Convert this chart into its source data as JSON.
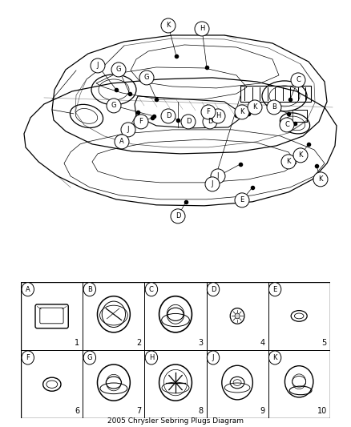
{
  "title": "2005 Chrysler Sebring Plugs Diagram",
  "bg_color": "#ffffff",
  "fig_width": 4.38,
  "fig_height": 5.33,
  "dpi": 100,
  "label_positions_upper": [
    [
      "K",
      210,
      298
    ],
    [
      "H",
      247,
      296
    ],
    [
      "J",
      133,
      258
    ],
    [
      "G",
      157,
      256
    ],
    [
      "G",
      188,
      245
    ],
    [
      "G",
      148,
      212
    ],
    [
      "C",
      355,
      242
    ],
    [
      "B",
      330,
      212
    ],
    [
      "C",
      348,
      195
    ],
    [
      "D",
      210,
      200
    ],
    [
      "D",
      237,
      188
    ],
    [
      "D",
      262,
      188
    ],
    [
      "F",
      179,
      195
    ],
    [
      "H",
      265,
      198
    ],
    [
      "F",
      258,
      205
    ],
    [
      "K",
      302,
      205
    ],
    [
      "K",
      316,
      210
    ],
    [
      "J",
      162,
      185
    ],
    [
      "A",
      153,
      172
    ]
  ],
  "label_positions_lower": [
    [
      "J",
      267,
      130
    ],
    [
      "D",
      222,
      80
    ],
    [
      "K",
      355,
      148
    ],
    [
      "K",
      368,
      155
    ],
    [
      "E",
      298,
      102
    ],
    [
      "K",
      382,
      128
    ]
  ],
  "legend_items": [
    {
      "col": 0,
      "row": 0,
      "letter": "A",
      "num": "1",
      "shape": "rect_plug"
    },
    {
      "col": 1,
      "row": 0,
      "letter": "B",
      "num": "2",
      "shape": "round_bowl"
    },
    {
      "col": 2,
      "row": 0,
      "letter": "C",
      "num": "3",
      "shape": "round_donut_large"
    },
    {
      "col": 3,
      "row": 0,
      "letter": "D",
      "num": "4",
      "shape": "tiny_bumpy"
    },
    {
      "col": 4,
      "row": 0,
      "letter": "E",
      "num": "5",
      "shape": "oval_small"
    },
    {
      "col": 0,
      "row": 1,
      "letter": "F",
      "num": "6",
      "shape": "oval_ring"
    },
    {
      "col": 1,
      "row": 1,
      "letter": "G",
      "num": "7",
      "shape": "round_wide_donut"
    },
    {
      "col": 2,
      "row": 1,
      "letter": "H",
      "num": "8",
      "shape": "round_x_cross"
    },
    {
      "col": 3,
      "row": 1,
      "letter": "J",
      "num": "9",
      "shape": "round_raised"
    },
    {
      "col": 4,
      "row": 1,
      "letter": "K",
      "num": "10",
      "shape": "round_cap_side"
    }
  ]
}
